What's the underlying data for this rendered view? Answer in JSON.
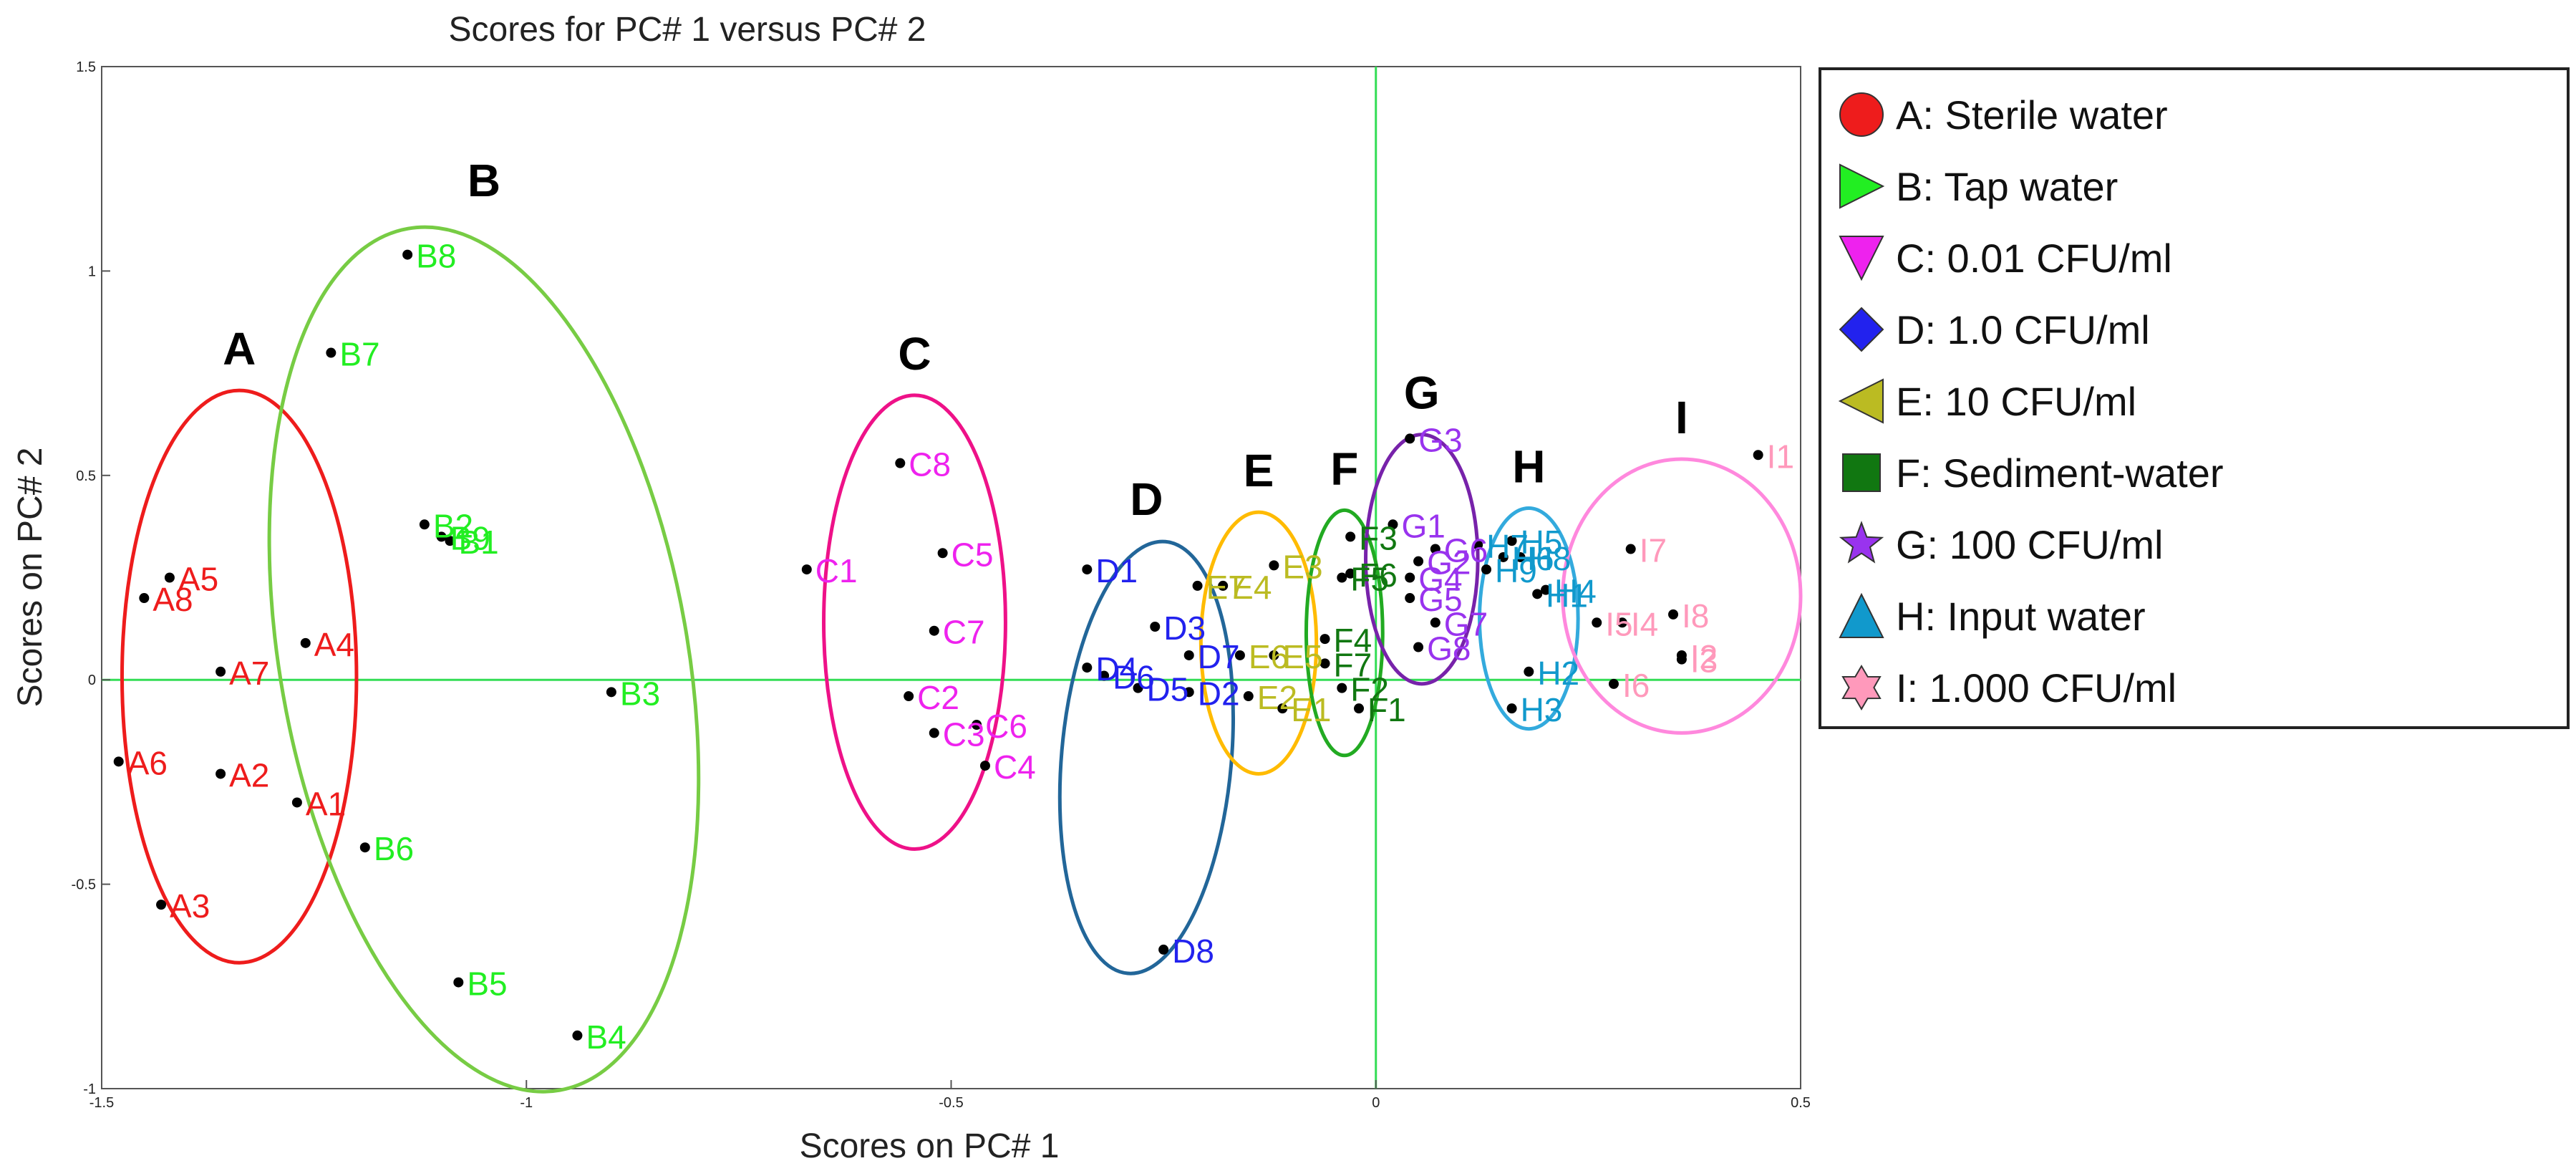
{
  "chart_data": {
    "type": "scatter",
    "title": "Scores for PC# 1 versus PC# 2",
    "xlabel": "Scores on PC# 1",
    "ylabel": "Scores on PC# 2",
    "xlim": [
      -1.5,
      0.5
    ],
    "ylim": [
      -1,
      1.5
    ],
    "x_ticks": [
      {
        "v": -1.5,
        "label": "-1.5"
      },
      {
        "v": -1,
        "label": "-1"
      },
      {
        "v": -0.5,
        "label": "-0.5"
      },
      {
        "v": 0,
        "label": "0"
      },
      {
        "v": 0.5,
        "label": "0.5"
      }
    ],
    "y_ticks": [
      {
        "v": 1.5,
        "label": "1.5"
      },
      {
        "v": 1,
        "label": "1"
      },
      {
        "v": 0.5,
        "label": "0.5"
      },
      {
        "v": 0,
        "label": "0"
      },
      {
        "v": -0.5,
        "label": "-0.5"
      },
      {
        "v": -1,
        "label": "-1"
      }
    ],
    "reference_lines": {
      "x": 0,
      "y": 0,
      "color": "#33dd55"
    },
    "groups": [
      {
        "id": "A",
        "label": "A: Sterile water",
        "color": "#ee1c1c",
        "marker": "circle",
        "ellipse": {
          "cx": -1.338,
          "cy": 0.008,
          "rx": 0.138,
          "ry": 0.7,
          "angle": 0
        },
        "points": [
          {
            "name": "A1",
            "x": -1.27,
            "y": -0.3
          },
          {
            "name": "A2",
            "x": -1.36,
            "y": -0.23
          },
          {
            "name": "A3",
            "x": -1.43,
            "y": -0.55
          },
          {
            "name": "A4",
            "x": -1.26,
            "y": 0.09
          },
          {
            "name": "A5",
            "x": -1.42,
            "y": 0.25
          },
          {
            "name": "A6",
            "x": -1.48,
            "y": -0.2
          },
          {
            "name": "A7",
            "x": -1.36,
            "y": 0.02
          },
          {
            "name": "A8",
            "x": -1.45,
            "y": 0.2
          }
        ]
      },
      {
        "id": "B",
        "label": "B: Tap water",
        "color": "#22ee22",
        "ellipse_color": "#77cc44",
        "marker": "triangle-right",
        "ellipse": {
          "cx": -1.05,
          "cy": 0.05,
          "rx": 0.24,
          "ry": 1.07,
          "angle": -10
        },
        "points": [
          {
            "name": "B1",
            "x": -1.09,
            "y": 0.34
          },
          {
            "name": "B2",
            "x": -1.12,
            "y": 0.38
          },
          {
            "name": "B3",
            "x": -0.9,
            "y": -0.03
          },
          {
            "name": "B4",
            "x": -0.94,
            "y": -0.87
          },
          {
            "name": "B5",
            "x": -1.08,
            "y": -0.74
          },
          {
            "name": "B6",
            "x": -1.19,
            "y": -0.41
          },
          {
            "name": "B7",
            "x": -1.23,
            "y": 0.8
          },
          {
            "name": "B8",
            "x": -1.14,
            "y": 1.04
          },
          {
            "name": "B9",
            "x": -1.1,
            "y": 0.35
          }
        ]
      },
      {
        "id": "C",
        "label": "C: 0.01 CFU/ml",
        "color": "#ee22ee",
        "ellipse_color": "#ee1188",
        "marker": "triangle-down",
        "ellipse": {
          "cx": -0.543,
          "cy": 0.141,
          "rx": 0.107,
          "ry": 0.555,
          "angle": 0
        },
        "points": [
          {
            "name": "C1",
            "x": -0.67,
            "y": 0.27
          },
          {
            "name": "C2",
            "x": -0.55,
            "y": -0.04
          },
          {
            "name": "C3",
            "x": -0.52,
            "y": -0.13
          },
          {
            "name": "C4",
            "x": -0.46,
            "y": -0.21
          },
          {
            "name": "C5",
            "x": -0.51,
            "y": 0.31
          },
          {
            "name": "C6",
            "x": -0.47,
            "y": -0.11
          },
          {
            "name": "C7",
            "x": -0.52,
            "y": 0.12
          },
          {
            "name": "C8",
            "x": -0.56,
            "y": 0.53
          }
        ]
      },
      {
        "id": "D",
        "label": "D: 1.0 CFU/ml",
        "color": "#2222ee",
        "ellipse_color": "#226699",
        "marker": "diamond",
        "ellipse": {
          "cx": -0.27,
          "cy": -0.19,
          "rx": 0.1,
          "ry": 0.53,
          "angle": 5
        },
        "points": [
          {
            "name": "D1",
            "x": -0.34,
            "y": 0.27
          },
          {
            "name": "D2",
            "x": -0.22,
            "y": -0.03
          },
          {
            "name": "D3",
            "x": -0.26,
            "y": 0.13
          },
          {
            "name": "D4",
            "x": -0.34,
            "y": 0.03
          },
          {
            "name": "D5",
            "x": -0.28,
            "y": -0.02
          },
          {
            "name": "D6",
            "x": -0.32,
            "y": 0.01
          },
          {
            "name": "D7",
            "x": -0.22,
            "y": 0.06
          },
          {
            "name": "D8",
            "x": -0.25,
            "y": -0.66
          }
        ]
      },
      {
        "id": "E",
        "label": "E: 10 CFU/ml",
        "color": "#bbbb22",
        "ellipse_color": "#ffbb00",
        "marker": "triangle-left",
        "ellipse": {
          "cx": -0.138,
          "cy": 0.09,
          "rx": 0.068,
          "ry": 0.32,
          "angle": 0
        },
        "points": [
          {
            "name": "E1",
            "x": -0.11,
            "y": -0.07
          },
          {
            "name": "E2",
            "x": -0.15,
            "y": -0.04
          },
          {
            "name": "E3",
            "x": -0.12,
            "y": 0.28
          },
          {
            "name": "E4",
            "x": -0.18,
            "y": 0.23
          },
          {
            "name": "E5",
            "x": -0.12,
            "y": 0.06
          },
          {
            "name": "E6",
            "x": -0.16,
            "y": 0.06
          },
          {
            "name": "E7",
            "x": -0.21,
            "y": 0.23
          }
        ]
      },
      {
        "id": "F",
        "label": "F: Sediment-water",
        "color": "#117711",
        "ellipse_color": "#22aa22",
        "marker": "square",
        "ellipse": {
          "cx": -0.037,
          "cy": 0.115,
          "rx": 0.045,
          "ry": 0.3,
          "angle": 0
        },
        "points": [
          {
            "name": "F1",
            "x": -0.02,
            "y": -0.07
          },
          {
            "name": "F2",
            "x": -0.04,
            "y": -0.02
          },
          {
            "name": "F3",
            "x": -0.03,
            "y": 0.35
          },
          {
            "name": "F4",
            "x": -0.06,
            "y": 0.1
          },
          {
            "name": "F5",
            "x": -0.04,
            "y": 0.25
          },
          {
            "name": "F6",
            "x": -0.03,
            "y": 0.26
          },
          {
            "name": "F7",
            "x": -0.06,
            "y": 0.04
          }
        ]
      },
      {
        "id": "G",
        "label": "G: 100 CFU/ml",
        "color": "#9933ee",
        "ellipse_color": "#7722aa",
        "marker": "star",
        "ellipse": {
          "cx": 0.054,
          "cy": 0.295,
          "rx": 0.066,
          "ry": 0.305,
          "angle": 0
        },
        "points": [
          {
            "name": "G1",
            "x": 0.02,
            "y": 0.38
          },
          {
            "name": "G2",
            "x": 0.05,
            "y": 0.29
          },
          {
            "name": "G3",
            "x": 0.04,
            "y": 0.59
          },
          {
            "name": "G4",
            "x": 0.04,
            "y": 0.25
          },
          {
            "name": "G5",
            "x": 0.04,
            "y": 0.2
          },
          {
            "name": "G6",
            "x": 0.07,
            "y": 0.32
          },
          {
            "name": "G7",
            "x": 0.07,
            "y": 0.14
          },
          {
            "name": "G8",
            "x": 0.05,
            "y": 0.08
          }
        ]
      },
      {
        "id": "H",
        "label": "H: Input water",
        "color": "#1199cc",
        "ellipse_color": "#33aadd",
        "marker": "triangle-up",
        "ellipse": {
          "cx": 0.18,
          "cy": 0.15,
          "rx": 0.058,
          "ry": 0.27,
          "angle": 0
        },
        "points": [
          {
            "name": "H1",
            "x": 0.19,
            "y": 0.21
          },
          {
            "name": "H2",
            "x": 0.18,
            "y": 0.02
          },
          {
            "name": "H3",
            "x": 0.16,
            "y": -0.07
          },
          {
            "name": "H4",
            "x": 0.2,
            "y": 0.22
          },
          {
            "name": "H5",
            "x": 0.16,
            "y": 0.34
          },
          {
            "name": "H6",
            "x": 0.15,
            "y": 0.3
          },
          {
            "name": "H7",
            "x": 0.12,
            "y": 0.33
          },
          {
            "name": "H8",
            "x": 0.17,
            "y": 0.3
          },
          {
            "name": "H9",
            "x": 0.13,
            "y": 0.27
          }
        ]
      },
      {
        "id": "I",
        "label": "I: 1.000 CFU/ml",
        "color": "#ff99bb",
        "ellipse_color": "#ff88dd",
        "marker": "hexagram",
        "ellipse": {
          "cx": 0.36,
          "cy": 0.205,
          "rx": 0.14,
          "ry": 0.335,
          "angle": 0
        },
        "points": [
          {
            "name": "I1",
            "x": 0.45,
            "y": 0.55
          },
          {
            "name": "I2",
            "x": 0.36,
            "y": 0.06
          },
          {
            "name": "I3",
            "x": 0.36,
            "y": 0.05
          },
          {
            "name": "I4",
            "x": 0.29,
            "y": 0.14
          },
          {
            "name": "I5",
            "x": 0.26,
            "y": 0.14
          },
          {
            "name": "I6",
            "x": 0.28,
            "y": -0.01
          },
          {
            "name": "I7",
            "x": 0.3,
            "y": 0.32
          },
          {
            "name": "I8",
            "x": 0.35,
            "y": 0.16
          }
        ]
      }
    ]
  }
}
